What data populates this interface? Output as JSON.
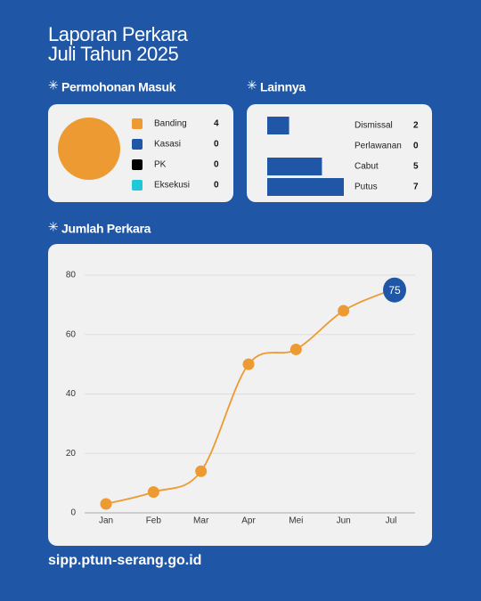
{
  "header": {
    "title": [
      "Laporan Perkara",
      "Juli Tahun 2025"
    ]
  },
  "chart_data": [
    {
      "type": "pie",
      "title": "Permohonan Masuk",
      "categories": [
        "Banding",
        "Kasasi",
        "PK",
        "Eksekusi"
      ],
      "values": [
        4,
        0,
        0,
        0
      ],
      "colors": [
        "#ec9a31",
        "#1f57a6",
        "#000000",
        "#1ec8d8"
      ]
    },
    {
      "type": "bar",
      "orientation": "horizontal",
      "title": "Lainnya",
      "categories": [
        "Dismissal",
        "Perlawanan",
        "Cabut",
        "Putus"
      ],
      "values": [
        2,
        0,
        5,
        7
      ],
      "color": "#1f57a6"
    },
    {
      "type": "line",
      "title": "Jumlah Perkara",
      "categories": [
        "Jan",
        "Feb",
        "Mar",
        "Apr",
        "Mei",
        "Jun",
        "Jul"
      ],
      "values": [
        3,
        7,
        14,
        50,
        55,
        68,
        75
      ],
      "color": "#ec9a31",
      "ylim": [
        0,
        80
      ],
      "yticks": [
        0,
        20,
        40,
        60,
        80
      ],
      "grid": true,
      "smooth": true,
      "label_last": true,
      "label_color": "#1f57a6"
    }
  ],
  "footer": "sipp.ptun-serang.go.id"
}
